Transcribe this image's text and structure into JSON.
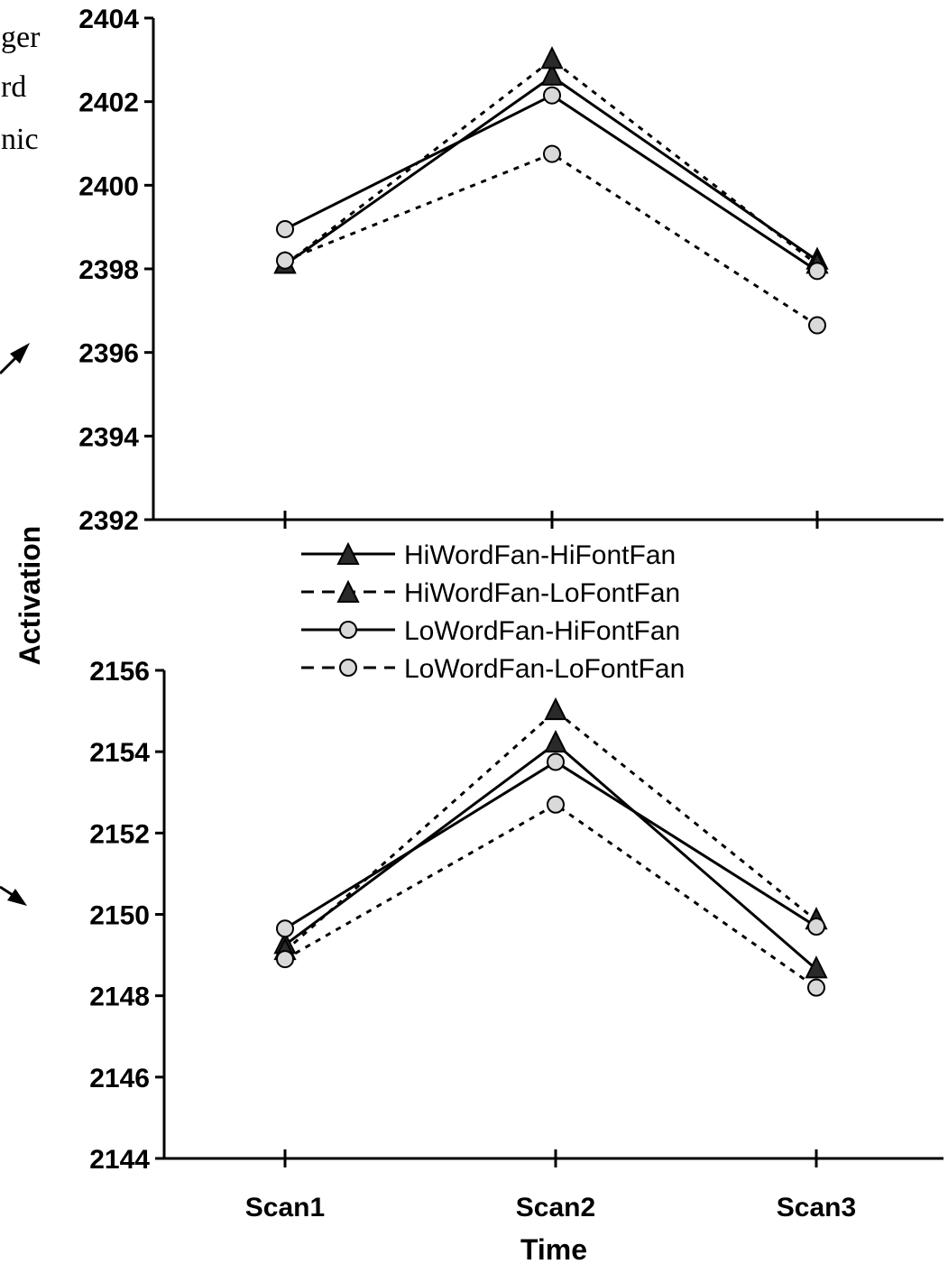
{
  "side_text": [
    "ger",
    "rd",
    "nic"
  ],
  "legend": [
    {
      "label": "HiWordFan-HiFontFan",
      "line": "solid",
      "marker": "triangle",
      "fill": "#2a2a2a"
    },
    {
      "label": "HiWordFan-LoFontFan",
      "line": "dashed",
      "marker": "triangle",
      "fill": "#2a2a2a"
    },
    {
      "label": "LoWordFan-HiFontFan",
      "line": "solid",
      "marker": "circle",
      "fill": "#d9d9d9"
    },
    {
      "label": "LoWordFan-LoFontFan",
      "line": "dashed",
      "marker": "circle",
      "fill": "#d9d9d9"
    }
  ],
  "chart_data": [
    {
      "type": "line",
      "categories": [
        "Scan1",
        "Scan2",
        "Scan3"
      ],
      "ylabel": "Activation",
      "ylim": [
        2392,
        2404
      ],
      "yticks": [
        "2392",
        "2394",
        "2396",
        "2398",
        "2400",
        "2402",
        "2404"
      ],
      "series": [
        {
          "name": "HiWordFan-HiFontFan",
          "values": [
            2398.1,
            2402.6,
            2398.2
          ]
        },
        {
          "name": "HiWordFan-LoFontFan",
          "values": [
            2398.1,
            2403.0,
            2398.1
          ]
        },
        {
          "name": "LoWordFan-HiFontFan",
          "values": [
            2398.95,
            2402.15,
            2397.95
          ]
        },
        {
          "name": "LoWordFan-LoFontFan",
          "values": [
            2398.2,
            2400.75,
            2396.65
          ]
        }
      ]
    },
    {
      "type": "line",
      "categories": [
        "Scan1",
        "Scan2",
        "Scan3"
      ],
      "xlabel": "Time",
      "ylim": [
        2144,
        2156
      ],
      "yticks": [
        "2144",
        "2146",
        "2148",
        "2150",
        "2152",
        "2154",
        "2156"
      ],
      "series": [
        {
          "name": "HiWordFan-HiFontFan",
          "values": [
            2149.25,
            2154.2,
            2148.65
          ]
        },
        {
          "name": "HiWordFan-LoFontFan",
          "values": [
            2149.1,
            2155.0,
            2149.85
          ]
        },
        {
          "name": "LoWordFan-HiFontFan",
          "values": [
            2149.65,
            2153.75,
            2149.7
          ]
        },
        {
          "name": "LoWordFan-LoFontFan",
          "values": [
            2148.9,
            2152.7,
            2148.2
          ]
        }
      ]
    }
  ]
}
